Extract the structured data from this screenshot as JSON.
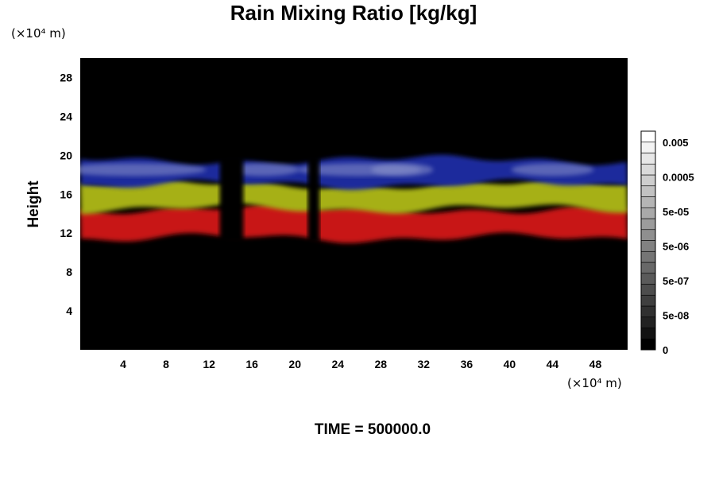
{
  "chart_data": {
    "type": "heatmap",
    "title": "Rain Mixing Ratio [kg/kg]",
    "ylabel": "Height",
    "x_unit": "(×10⁴ m)",
    "y_unit": "(×10⁴ m)",
    "x_ticks": [
      4,
      8,
      12,
      16,
      20,
      24,
      28,
      32,
      36,
      40,
      44,
      48
    ],
    "y_ticks": [
      4,
      8,
      12,
      16,
      20,
      24,
      28
    ],
    "xlim": [
      0,
      51
    ],
    "ylim": [
      0,
      30
    ],
    "background_color": "#000000",
    "bands": [
      {
        "color": "#c81414",
        "y_range": [
          11.5,
          14.5
        ]
      },
      {
        "color": "#a6b018",
        "y_range": [
          14.5,
          17
        ]
      },
      {
        "color": "#1e2c9c",
        "y_range": [
          17,
          19.5
        ]
      }
    ],
    "gaps_x": [
      [
        13,
        15.2
      ],
      [
        21.2,
        22.3
      ]
    ],
    "colorbar": {
      "labels": [
        "0.005",
        "0.0005",
        "5e-05",
        "5e-06",
        "5e-07",
        "5e-08",
        "0"
      ]
    },
    "footer": "TIME = 500000.0"
  }
}
